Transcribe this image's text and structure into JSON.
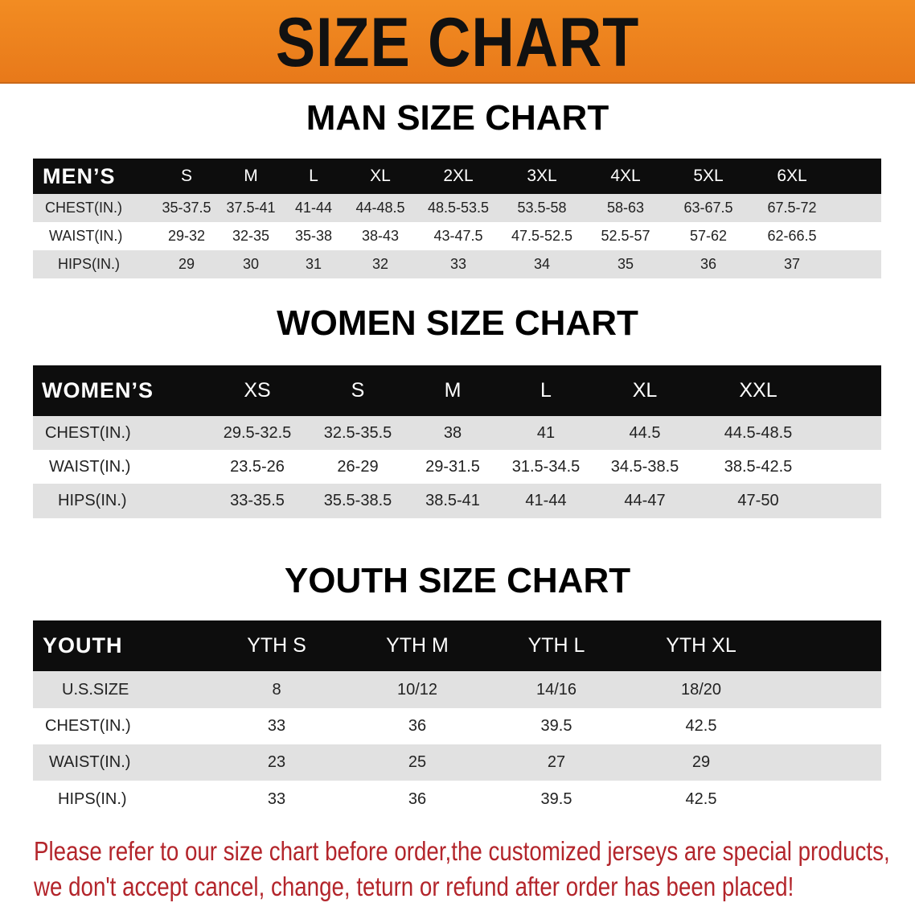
{
  "banner": {
    "title": "SIZE CHART",
    "color": "#ef8420"
  },
  "men": {
    "title": "MAN SIZE CHART",
    "header_label": "MEN’S",
    "sizes": [
      "S",
      "M",
      "L",
      "XL",
      "2XL",
      "3XL",
      "4XL",
      "5XL",
      "6XL"
    ],
    "rows": [
      {
        "label": "CHEST(IN.)",
        "values": [
          "35-37.5",
          "37.5-41",
          "41-44",
          "44-48.5",
          "48.5-53.5",
          "53.5-58",
          "58-63",
          "63-67.5",
          "67.5-72"
        ]
      },
      {
        "label": "WAIST(IN.)",
        "values": [
          "29-32",
          "32-35",
          "35-38",
          "38-43",
          "43-47.5",
          "47.5-52.5",
          "52.5-57",
          "57-62",
          "62-66.5"
        ]
      },
      {
        "label": "HIPS(IN.)",
        "values": [
          "29",
          "30",
          "31",
          "32",
          "33",
          "34",
          "35",
          "36",
          "37"
        ]
      }
    ]
  },
  "women": {
    "title": "WOMEN SIZE CHART",
    "header_label": "WOMEN’S",
    "sizes": [
      "XS",
      "S",
      "M",
      "L",
      "XL",
      "XXL"
    ],
    "rows": [
      {
        "label": "CHEST(IN.)",
        "values": [
          "29.5-32.5",
          "32.5-35.5",
          "38",
          "41",
          "44.5",
          "44.5-48.5"
        ]
      },
      {
        "label": "WAIST(IN.)",
        "values": [
          "23.5-26",
          "26-29",
          "29-31.5",
          "31.5-34.5",
          "34.5-38.5",
          "38.5-42.5"
        ]
      },
      {
        "label": "HIPS(IN.)",
        "values": [
          "33-35.5",
          "35.5-38.5",
          "38.5-41",
          "41-44",
          "44-47",
          "47-50"
        ]
      }
    ]
  },
  "youth": {
    "title": "YOUTH SIZE CHART",
    "header_label": "YOUTH",
    "sizes": [
      "YTH S",
      "YTH M",
      "YTH L",
      "YTH XL"
    ],
    "rows": [
      {
        "label": "U.S.SIZE",
        "values": [
          "8",
          "10/12",
          "14/16",
          "18/20"
        ]
      },
      {
        "label": "CHEST(IN.)",
        "values": [
          "33",
          "36",
          "39.5",
          "42.5"
        ]
      },
      {
        "label": "WAIST(IN.)",
        "values": [
          "23",
          "25",
          "27",
          "29"
        ]
      },
      {
        "label": "HIPS(IN.)",
        "values": [
          "33",
          "36",
          "39.5",
          "42.5"
        ]
      }
    ]
  },
  "note": {
    "line1": "Please refer to our size chart before order,the customized jerseys are special products,",
    "line2": "we don't accept cancel, change, teturn or refund after order has been placed!",
    "color": "#b3252b"
  }
}
